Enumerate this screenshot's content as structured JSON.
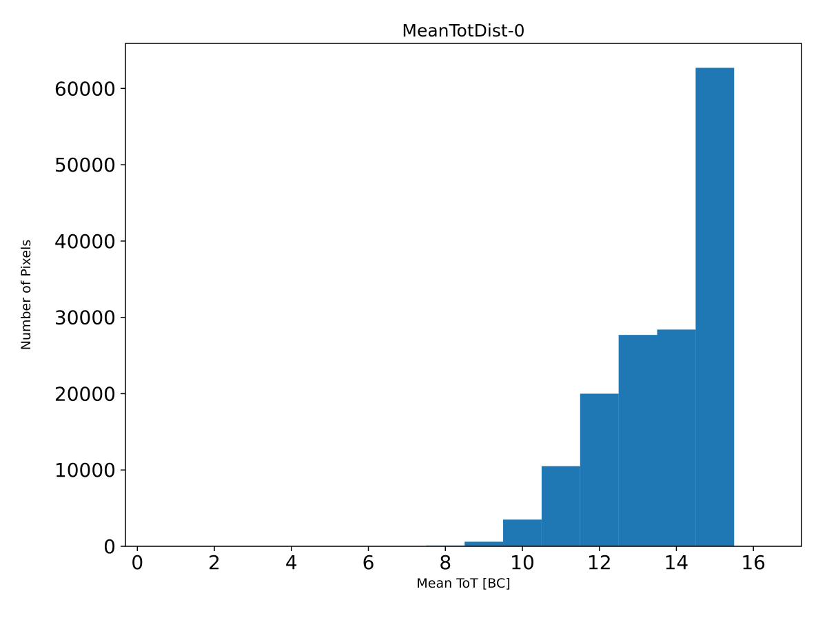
{
  "figure": {
    "title": "MeanTotDist-0",
    "xlabel": "Mean ToT [BC]",
    "ylabel": "Number of Pixels"
  },
  "chart_data": {
    "type": "bar",
    "title": "MeanTotDist-0",
    "xlabel": "Mean ToT [BC]",
    "ylabel": "Number of Pixels",
    "bar_color": "#1f77b4",
    "bin_centers": [
      8,
      9,
      10,
      11,
      12,
      13,
      14,
      15
    ],
    "bin_width": 1,
    "values": [
      100,
      600,
      3500,
      10500,
      20000,
      27700,
      28400,
      62700
    ],
    "xticks": [
      0,
      2,
      4,
      6,
      8,
      10,
      12,
      14,
      16
    ],
    "yticks": [
      0,
      10000,
      20000,
      30000,
      40000,
      50000,
      60000
    ],
    "xlim": [
      -0.31,
      17.25
    ],
    "ylim": [
      0,
      65900
    ],
    "grid": false,
    "legend": null
  }
}
